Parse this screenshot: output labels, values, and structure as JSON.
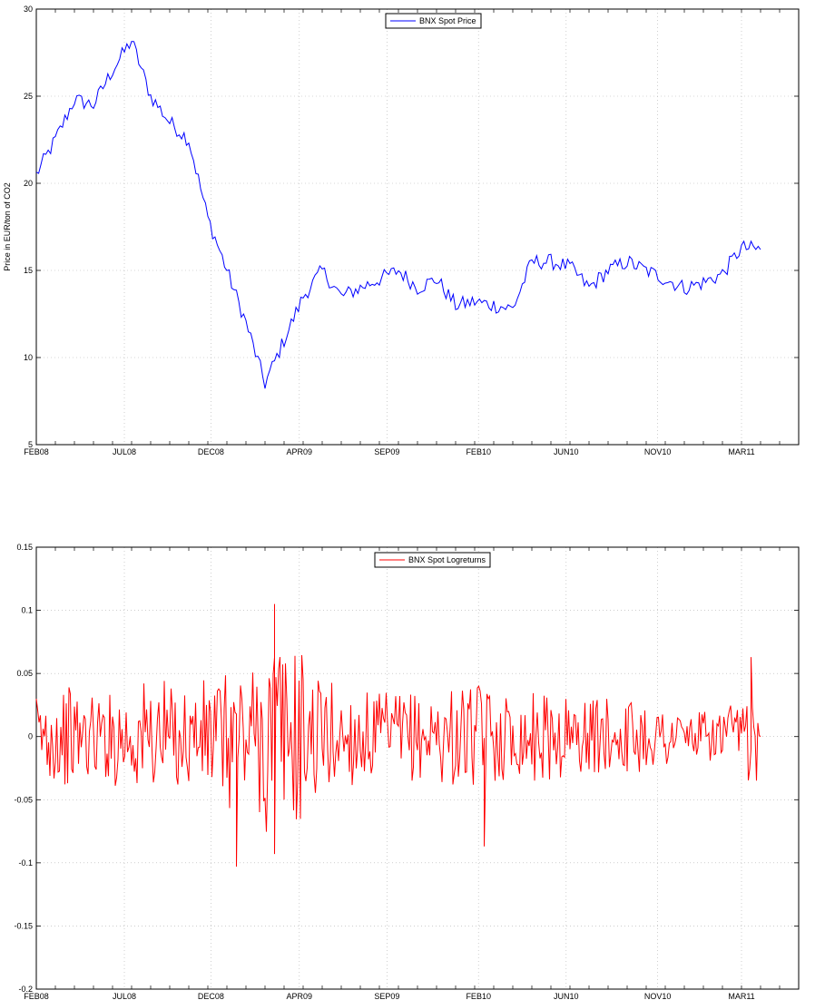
{
  "charts": [
    {
      "id": "price",
      "legend": "BNX Spot Price",
      "ylabel": "Price in EUR/ton of CO2",
      "ylim": [
        5,
        30
      ],
      "yticks": [
        "5",
        "10",
        "15",
        "20",
        "25",
        "30"
      ],
      "color": "#0000ff"
    },
    {
      "id": "returns",
      "legend": "BNX Spot Logreturns",
      "ylabel": "",
      "ylim": [
        -0.2,
        0.15
      ],
      "yticks": [
        "-0.2",
        "-0.15",
        "-0.1",
        "-0.05",
        "0",
        "0.05",
        "0.1",
        "0.15"
      ],
      "color": "#ff0000"
    }
  ],
  "x_ticks": [
    "FEB08",
    "JUL08",
    "DEC08",
    "APR09",
    "SEP09",
    "FEB10",
    "JUN10",
    "NOV10",
    "MAR11"
  ],
  "chart_data": [
    {
      "type": "line",
      "title": "",
      "xlabel": "",
      "ylabel": "Price in EUR/ton of CO2",
      "x_unit": "date (monthly approx)",
      "xlim": [
        "2008-02",
        "2011-07"
      ],
      "ylim": [
        5,
        30
      ],
      "grid": true,
      "legend_position": "top-center",
      "series": [
        {
          "name": "BNX Spot Price",
          "color": "#0000ff",
          "x": [
            "2008-02",
            "2008-03",
            "2008-04",
            "2008-05",
            "2008-06",
            "2008-07",
            "2008-08",
            "2008-09",
            "2008-10",
            "2008-11",
            "2008-12",
            "2009-01",
            "2009-02",
            "2009-03",
            "2009-04",
            "2009-05",
            "2009-06",
            "2009-07",
            "2009-08",
            "2009-09",
            "2009-10",
            "2009-11",
            "2009-12",
            "2010-01",
            "2010-02",
            "2010-03",
            "2010-04",
            "2010-05",
            "2010-06",
            "2010-07",
            "2010-08",
            "2010-09",
            "2010-10",
            "2010-11",
            "2010-12",
            "2011-01",
            "2011-02",
            "2011-03",
            "2011-04"
          ],
          "y": [
            20.5,
            22.5,
            24.8,
            24.5,
            26.5,
            28.2,
            25.0,
            23.5,
            22.5,
            18.0,
            15.0,
            12.0,
            8.5,
            11.0,
            13.5,
            15.0,
            13.5,
            14.0,
            14.5,
            15.0,
            14.0,
            14.5,
            13.0,
            13.2,
            13.0,
            12.8,
            15.5,
            15.5,
            15.2,
            14.0,
            15.0,
            15.5,
            15.0,
            14.5,
            14.0,
            14.3,
            14.8,
            16.3,
            16.2
          ]
        }
      ]
    },
    {
      "type": "line",
      "title": "",
      "xlabel": "",
      "ylabel": "",
      "x_unit": "date (monthly approx)",
      "xlim": [
        "2008-02",
        "2011-07"
      ],
      "ylim": [
        -0.2,
        0.15
      ],
      "grid": true,
      "legend_position": "top-center",
      "series": [
        {
          "name": "BNX Spot Logreturns",
          "color": "#ff0000",
          "x": [
            "2008-02",
            "2008-03",
            "2008-04",
            "2008-05",
            "2008-06",
            "2008-07",
            "2008-08",
            "2008-09",
            "2008-10",
            "2008-11",
            "2008-12",
            "2009-01",
            "2009-02",
            "2009-03",
            "2009-04",
            "2009-05",
            "2009-06",
            "2009-07",
            "2009-08",
            "2009-09",
            "2009-10",
            "2009-11",
            "2009-12",
            "2010-01",
            "2010-02",
            "2010-03",
            "2010-04",
            "2010-05",
            "2010-06",
            "2010-07",
            "2010-08",
            "2010-09",
            "2010-10",
            "2010-11",
            "2010-12",
            "2011-01",
            "2011-02",
            "2011-03",
            "2011-04"
          ],
          "amplitude": [
            0.035,
            0.04,
            0.035,
            0.035,
            0.04,
            0.045,
            0.045,
            0.04,
            0.045,
            0.05,
            0.06,
            0.06,
            0.09,
            0.07,
            0.05,
            0.045,
            0.04,
            0.035,
            0.035,
            0.035,
            0.035,
            0.04,
            0.04,
            0.04,
            0.035,
            0.03,
            0.035,
            0.035,
            0.03,
            0.03,
            0.025,
            0.03,
            0.025,
            0.025,
            0.02,
            0.02,
            0.025,
            0.035,
            0.025
          ],
          "spikes": [
            {
              "x": "2008-12",
              "y": -0.103
            },
            {
              "x": "2009-02",
              "y": 0.105
            },
            {
              "x": "2009-02",
              "y": -0.093
            },
            {
              "x": "2010-01",
              "y": -0.087
            },
            {
              "x": "2011-03",
              "y": 0.063
            }
          ]
        }
      ]
    }
  ]
}
